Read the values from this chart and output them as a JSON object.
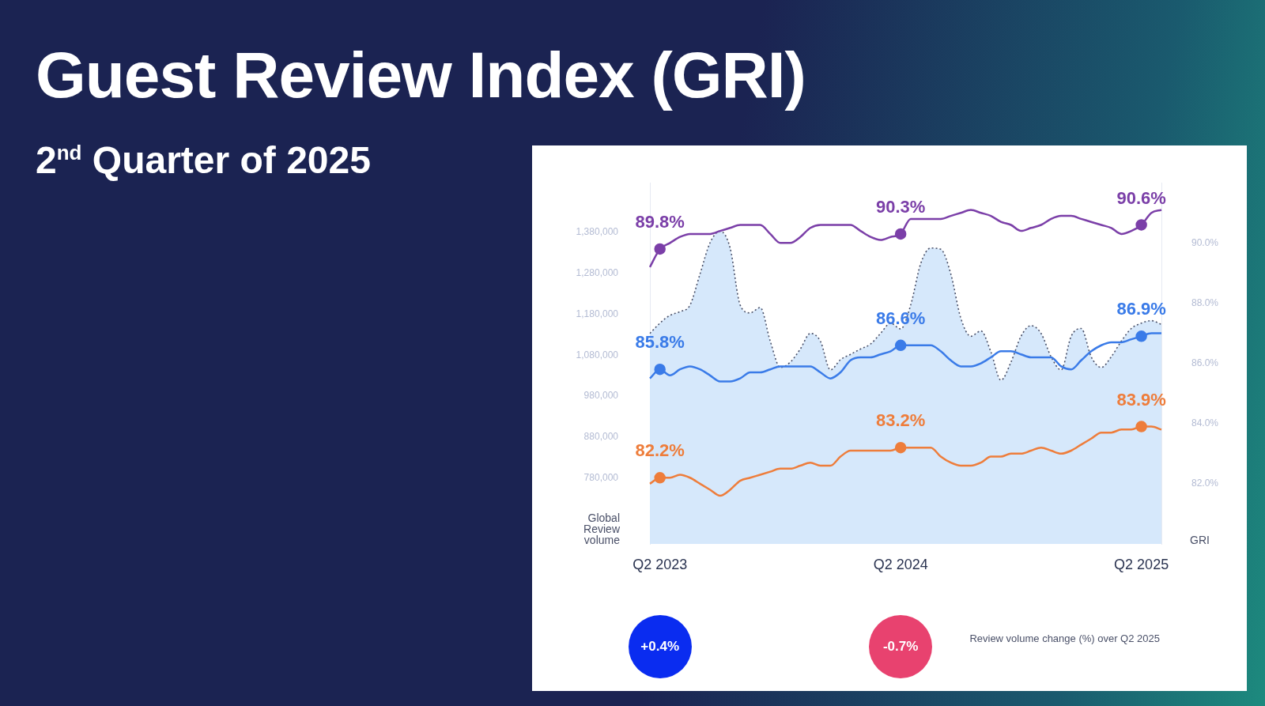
{
  "chart_data": {
    "type": "line",
    "title": "Guest Review Index (GRI)",
    "subtitle": "2$^{nd}$ Quarter of 2025",
    "ylabel": "Global Review volume",
    "y2label": "GRI",
    "categories": [
      null,
      "Q2 2023",
      null,
      null,
      null,
      null,
      null,
      null,
      null,
      null,
      null,
      null,
      null,
      null,
      null,
      null,
      null,
      null,
      null,
      null,
      null,
      null,
      null,
      null,
      null,
      "Q2 2024",
      null,
      null,
      null,
      null,
      null,
      null,
      null,
      null,
      null,
      null,
      null,
      null,
      null,
      null,
      null,
      null,
      null,
      null,
      null,
      null,
      null,
      null,
      null,
      "Q2 2025",
      null,
      null
    ],
    "series": [
      {
        "type": "area",
        "axis": "y",
        "color": "#d6e8fb",
        "line_style": "dotted",
        "values": [
          1133000,
          1158000,
          1177000,
          1186000,
          1202000,
          1278000,
          1354000,
          1382000,
          1341000,
          1202000,
          1183000,
          1196000,
          1114000,
          1050000,
          1063000,
          1095000,
          1133000,
          1114000,
          1044000,
          1069000,
          1082000,
          1095000,
          1107000,
          1133000,
          1158000,
          1144000,
          1202000,
          1303000,
          1341000,
          1338000,
          1278000,
          1170000,
          1126000,
          1139000,
          1088000,
          1019000,
          1063000,
          1126000,
          1152000,
          1133000,
          1076000,
          1044000,
          1126000,
          1145000,
          1076000,
          1050000,
          1076000,
          1114000,
          1145000,
          1158000,
          1164000,
          1155000
        ]
      },
      {
        "type": "line",
        "axis": "y2",
        "color": "#7b3fa8",
        "values": [
          89.2,
          89.8,
          90.0,
          90.2,
          90.3,
          90.3,
          90.3,
          90.4,
          90.5,
          90.6,
          90.6,
          90.6,
          90.3,
          90.0,
          90.0,
          90.2,
          90.5,
          90.6,
          90.6,
          90.6,
          90.6,
          90.4,
          90.2,
          90.1,
          90.2,
          90.3,
          90.8,
          90.8,
          90.8,
          90.8,
          90.9,
          91.0,
          91.1,
          91.0,
          90.9,
          90.7,
          90.6,
          90.4,
          90.5,
          90.6,
          90.8,
          90.9,
          90.9,
          90.8,
          90.7,
          90.6,
          90.5,
          90.3,
          90.4,
          90.6,
          91.0,
          91.1
        ],
        "value_labels": [
          null,
          "89.8%",
          null,
          null,
          null,
          null,
          null,
          null,
          null,
          null,
          null,
          null,
          null,
          null,
          null,
          null,
          null,
          null,
          null,
          null,
          null,
          null,
          null,
          null,
          null,
          "90.3%",
          null,
          null,
          null,
          null,
          null,
          null,
          null,
          null,
          null,
          null,
          null,
          null,
          null,
          null,
          null,
          null,
          null,
          null,
          null,
          null,
          null,
          null,
          null,
          "90.6%",
          null,
          null
        ]
      },
      {
        "type": "line",
        "axis": "y2",
        "color": "#3a7be8",
        "values": [
          85.5,
          85.8,
          85.6,
          85.8,
          85.9,
          85.8,
          85.6,
          85.4,
          85.4,
          85.5,
          85.7,
          85.7,
          85.8,
          85.9,
          85.9,
          85.9,
          85.9,
          85.7,
          85.5,
          85.7,
          86.1,
          86.2,
          86.2,
          86.3,
          86.4,
          86.6,
          86.6,
          86.6,
          86.6,
          86.4,
          86.1,
          85.9,
          85.9,
          86.0,
          86.2,
          86.4,
          86.4,
          86.3,
          86.2,
          86.2,
          86.2,
          85.9,
          85.8,
          86.1,
          86.4,
          86.6,
          86.7,
          86.7,
          86.8,
          86.9,
          87.0,
          87.0
        ],
        "value_labels": [
          null,
          "85.8%",
          null,
          null,
          null,
          null,
          null,
          null,
          null,
          null,
          null,
          null,
          null,
          null,
          null,
          null,
          null,
          null,
          null,
          null,
          null,
          null,
          null,
          null,
          null,
          "86.6%",
          null,
          null,
          null,
          null,
          null,
          null,
          null,
          null,
          null,
          null,
          null,
          null,
          null,
          null,
          null,
          null,
          null,
          null,
          null,
          null,
          null,
          null,
          null,
          "86.9%",
          null,
          null
        ]
      },
      {
        "type": "line",
        "axis": "y2",
        "color": "#ee7d3b",
        "values": [
          82.0,
          82.2,
          82.2,
          82.3,
          82.2,
          82.0,
          81.8,
          81.6,
          81.8,
          82.1,
          82.2,
          82.3,
          82.4,
          82.5,
          82.5,
          82.6,
          82.7,
          82.6,
          82.6,
          82.9,
          83.1,
          83.1,
          83.1,
          83.1,
          83.1,
          83.2,
          83.2,
          83.2,
          83.2,
          82.9,
          82.7,
          82.6,
          82.6,
          82.7,
          82.9,
          82.9,
          83.0,
          83.0,
          83.1,
          83.2,
          83.1,
          83.0,
          83.1,
          83.3,
          83.5,
          83.7,
          83.7,
          83.8,
          83.8,
          83.9,
          83.9,
          83.8
        ],
        "value_labels": [
          null,
          "82.2%",
          null,
          null,
          null,
          null,
          null,
          null,
          null,
          null,
          null,
          null,
          null,
          null,
          null,
          null,
          null,
          null,
          null,
          null,
          null,
          null,
          null,
          null,
          null,
          "83.2%",
          null,
          null,
          null,
          null,
          null,
          null,
          null,
          null,
          null,
          null,
          null,
          null,
          null,
          null,
          null,
          null,
          null,
          null,
          null,
          null,
          null,
          null,
          null,
          "83.9%",
          null,
          null
        ]
      }
    ],
    "ylim": [
      620000,
      1500000
    ],
    "yticks": [
      {
        "value": 780000,
        "label": "780,000"
      },
      {
        "value": 880000,
        "label": "880,000"
      },
      {
        "value": 980000,
        "label": "980,000"
      },
      {
        "value": 1080000,
        "label": "1,080,000"
      },
      {
        "value": 1180000,
        "label": "1,180,000"
      },
      {
        "value": 1280000,
        "label": "1,280,000"
      },
      {
        "value": 1380000,
        "label": "1,380,000"
      }
    ],
    "y2lim": [
      80,
      92
    ],
    "y2ticks": [
      {
        "value": 82,
        "label": "82.0%"
      },
      {
        "value": 84,
        "label": "84.0%"
      },
      {
        "value": 86,
        "label": "86.0%"
      },
      {
        "value": 88,
        "label": "88.0%"
      },
      {
        "value": 90,
        "label": "90.0%"
      }
    ],
    "grid": false,
    "legend": false,
    "annotations": [
      "+0.4%",
      "-0.7%",
      "Review volume change (%) over Q2 2025"
    ]
  }
}
